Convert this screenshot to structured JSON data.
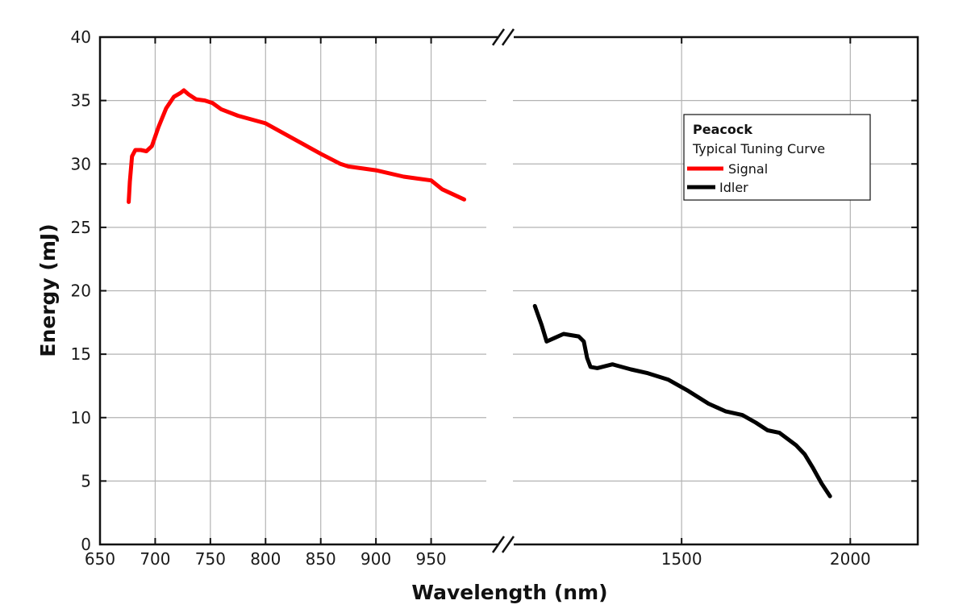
{
  "chart_data": {
    "type": "line",
    "title": "",
    "xlabel": "Wavelength (nm)",
    "ylabel": "Energy (mJ)",
    "ylim": [
      0,
      40
    ],
    "yticks": [
      "0",
      "5",
      "10",
      "15",
      "20",
      "25",
      "30",
      "35",
      "40"
    ],
    "grid": true,
    "x_axis": "broken",
    "left_panel": {
      "xlim": [
        650,
        1000
      ],
      "xticks": [
        "650",
        "700",
        "750",
        "800",
        "850",
        "900",
        "950"
      ]
    },
    "right_panel": {
      "xlim": [
        1000,
        2200
      ],
      "xticks": [
        "1500",
        "2000"
      ]
    },
    "legend": {
      "title": "Peacock",
      "subtitle": "Typical Tuning Curve",
      "position": "top-right"
    },
    "series": [
      {
        "name": "Signal",
        "color": "#ff0000",
        "points": [
          [
            676,
            27
          ],
          [
            677,
            28.6
          ],
          [
            679,
            30.6
          ],
          [
            682,
            31.1
          ],
          [
            687,
            31.1
          ],
          [
            692,
            31.0
          ],
          [
            697,
            31.4
          ],
          [
            703,
            32.9
          ],
          [
            710,
            34.4
          ],
          [
            717,
            35.3
          ],
          [
            723,
            35.6
          ],
          [
            726,
            35.8
          ],
          [
            730,
            35.5
          ],
          [
            737,
            35.1
          ],
          [
            745,
            35.0
          ],
          [
            752,
            34.8
          ],
          [
            760,
            34.3
          ],
          [
            775,
            33.8
          ],
          [
            800,
            33.2
          ],
          [
            825,
            32.0
          ],
          [
            850,
            30.8
          ],
          [
            868,
            30.0
          ],
          [
            875,
            29.8
          ],
          [
            900,
            29.5
          ],
          [
            925,
            29.0
          ],
          [
            950,
            28.7
          ],
          [
            960,
            28.0
          ],
          [
            980,
            27.2
          ]
        ]
      },
      {
        "name": "Idler",
        "color": "#000000",
        "points": [
          [
            1065,
            18.8
          ],
          [
            1085,
            17.3
          ],
          [
            1100,
            16.0
          ],
          [
            1125,
            16.3
          ],
          [
            1150,
            16.6
          ],
          [
            1195,
            16.4
          ],
          [
            1210,
            16.0
          ],
          [
            1220,
            14.7
          ],
          [
            1230,
            14.0
          ],
          [
            1250,
            13.9
          ],
          [
            1295,
            14.2
          ],
          [
            1350,
            13.8
          ],
          [
            1400,
            13.5
          ],
          [
            1460,
            13.0
          ],
          [
            1520,
            12.1
          ],
          [
            1580,
            11.1
          ],
          [
            1630,
            10.5
          ],
          [
            1680,
            10.2
          ],
          [
            1720,
            9.6
          ],
          [
            1755,
            9.0
          ],
          [
            1790,
            8.8
          ],
          [
            1810,
            8.4
          ],
          [
            1840,
            7.8
          ],
          [
            1865,
            7.1
          ],
          [
            1890,
            6.0
          ],
          [
            1915,
            4.8
          ],
          [
            1940,
            3.8
          ]
        ]
      }
    ]
  }
}
